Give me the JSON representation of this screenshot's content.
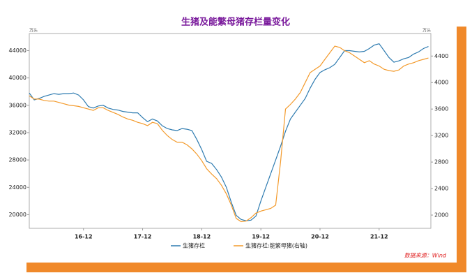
{
  "chart_data": {
    "type": "line",
    "title": "生猪及能繁母猪存栏量变化",
    "y_unit": "万头",
    "y2_unit": "万头",
    "source": "数据来源：Wind",
    "legend": "bottom",
    "categories": [
      null,
      null,
      null,
      null,
      null,
      null,
      null,
      null,
      null,
      null,
      null,
      "16-12",
      null,
      null,
      null,
      null,
      null,
      null,
      null,
      null,
      null,
      null,
      null,
      "17-12",
      null,
      null,
      null,
      null,
      null,
      null,
      null,
      null,
      null,
      null,
      null,
      "18-12",
      null,
      null,
      null,
      null,
      null,
      null,
      null,
      null,
      null,
      null,
      null,
      "19-12",
      null,
      null,
      null,
      null,
      null,
      null,
      null,
      null,
      null,
      null,
      null,
      "20-12",
      null,
      null,
      null,
      null,
      null,
      null,
      null,
      null,
      null,
      null,
      null,
      "21-12",
      null,
      null,
      null,
      null,
      null,
      null,
      null,
      null,
      null,
      null
    ],
    "ylim": [
      18000,
      46500
    ],
    "yticks": [
      20000,
      24000,
      28000,
      32000,
      36000,
      40000,
      44000
    ],
    "y2lim": [
      1800,
      4740
    ],
    "y2ticks": [
      2000,
      2400,
      2800,
      3200,
      3600,
      4000,
      4400
    ],
    "series": [
      {
        "name": "生猪存栏",
        "color": "#2e7bb0",
        "values": [
          37800,
          36800,
          37000,
          37300,
          37500,
          37700,
          37600,
          37700,
          37700,
          37800,
          37500,
          36800,
          35800,
          35600,
          35900,
          36000,
          35600,
          35400,
          35300,
          35100,
          35000,
          34900,
          34900,
          34200,
          33600,
          34000,
          33700,
          33000,
          32600,
          32400,
          32300,
          32600,
          32500,
          32300,
          31000,
          29500,
          27800,
          27500,
          26600,
          25500,
          24000,
          21800,
          19900,
          19300,
          19100,
          19200,
          19800,
          22000,
          24000,
          26000,
          28000,
          30000,
          32200,
          34000,
          35000,
          36000,
          37000,
          38500,
          39800,
          40800,
          41200,
          41500,
          42000,
          43000,
          44000,
          44000,
          43900,
          43800,
          43900,
          44300,
          44800,
          45000,
          44000,
          43000,
          42300,
          42500,
          42800,
          43000,
          43500,
          43800,
          44300,
          44600
        ]
      },
      {
        "name": "生猪存栏:能繁母猪(右轴)",
        "color": "#f39a2b",
        "axis": "y2",
        "values": [
          3800,
          3750,
          3750,
          3730,
          3720,
          3720,
          3700,
          3680,
          3660,
          3650,
          3640,
          3620,
          3600,
          3580,
          3620,
          3620,
          3580,
          3550,
          3520,
          3480,
          3450,
          3430,
          3400,
          3380,
          3350,
          3400,
          3380,
          3280,
          3200,
          3140,
          3100,
          3100,
          3060,
          3000,
          2920,
          2820,
          2700,
          2620,
          2550,
          2450,
          2320,
          2150,
          1950,
          1900,
          1910,
          1960,
          2030,
          2060,
          2080,
          2100,
          2150,
          2800,
          3600,
          3670,
          3750,
          3850,
          4000,
          4150,
          4200,
          4250,
          4350,
          4450,
          4550,
          4530,
          4480,
          4450,
          4400,
          4350,
          4300,
          4330,
          4280,
          4250,
          4200,
          4180,
          4170,
          4190,
          4250,
          4280,
          4300,
          4330,
          4350,
          4370
        ]
      }
    ]
  }
}
